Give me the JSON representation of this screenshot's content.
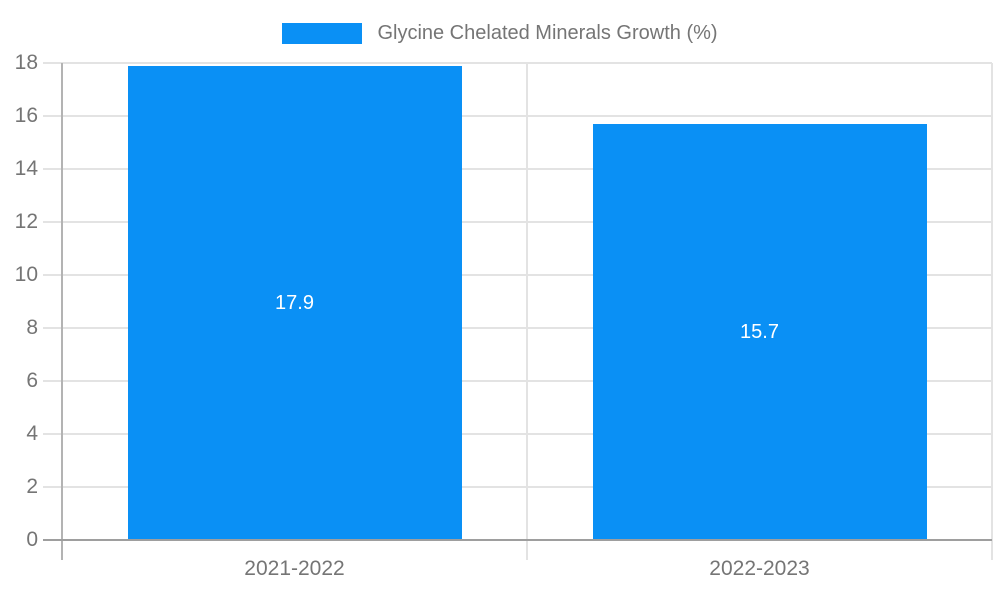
{
  "chart_data": {
    "type": "bar",
    "title": "",
    "legend": "Glycine Chelated Minerals Growth (%)",
    "legend_position": "top-center",
    "categories": [
      "2021-2022",
      "2022-2023"
    ],
    "values": [
      17.9,
      15.7
    ],
    "value_labels": [
      "17.9",
      "15.7"
    ],
    "xlabel": "",
    "ylabel": "",
    "ylim": [
      0,
      18
    ],
    "ytick_step": 2,
    "ytick_labels": [
      "0",
      "2",
      "4",
      "6",
      "8",
      "10",
      "12",
      "14",
      "16",
      "18"
    ],
    "grid": true,
    "colors": {
      "bar": "#0a90f5",
      "gridline": "#e3e3e3",
      "boundary_line": "#e3e3e3",
      "axis_line": "#b3b3b3",
      "baseline": "#9e9e9e",
      "tick_label": "#757575",
      "legend_label": "#757575",
      "value_label": "#ffffff",
      "background": "#ffffff"
    }
  }
}
